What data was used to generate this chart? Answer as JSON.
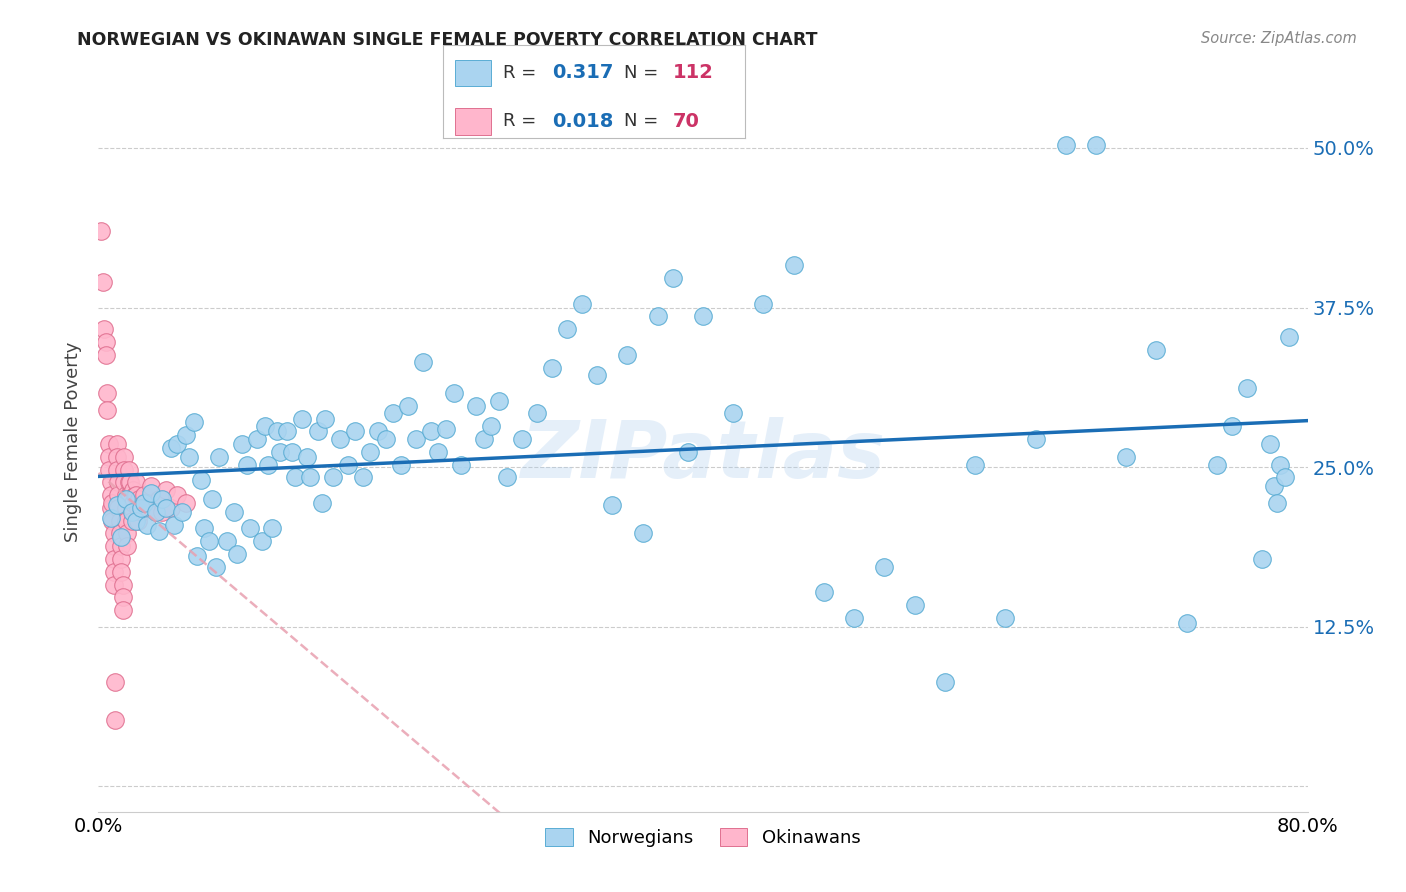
{
  "title": "NORWEGIAN VS OKINAWAN SINGLE FEMALE POVERTY CORRELATION CHART",
  "source": "Source: ZipAtlas.com",
  "ylabel": "Single Female Poverty",
  "xlim": [
    0.0,
    0.8
  ],
  "ylim": [
    -0.02,
    0.56
  ],
  "yticks": [
    0.0,
    0.125,
    0.25,
    0.375,
    0.5
  ],
  "ytick_labels": [
    "",
    "12.5%",
    "25.0%",
    "37.5%",
    "50.0%"
  ],
  "xticks": [
    0.0,
    0.16,
    0.32,
    0.48,
    0.64,
    0.8
  ],
  "xtick_labels": [
    "0.0%",
    "",
    "",
    "",
    "",
    "80.0%"
  ],
  "norwegian_R": 0.317,
  "norwegian_N": 112,
  "okinawan_R": 0.018,
  "okinawan_N": 70,
  "norwegian_color": "#aad4f0",
  "norwegian_edge_color": "#5aadd4",
  "norwegian_line_color": "#1a6db5",
  "okinawan_color": "#ffb6cc",
  "okinawan_edge_color": "#e07090",
  "okinawan_line_color": "#cc3366",
  "okinawan_dash_color": "#e8a0b0",
  "background_color": "#ffffff",
  "grid_color": "#cccccc",
  "title_color": "#222222",
  "source_color": "#888888",
  "watermark": "ZIPatlas",
  "legend_box_color": "#1a6db5",
  "legend_N_color": "#cc3366",
  "norwegian_x": [
    0.008,
    0.012,
    0.015,
    0.018,
    0.022,
    0.025,
    0.028,
    0.03,
    0.032,
    0.035,
    0.038,
    0.04,
    0.042,
    0.045,
    0.048,
    0.05,
    0.052,
    0.055,
    0.058,
    0.06,
    0.063,
    0.065,
    0.068,
    0.07,
    0.073,
    0.075,
    0.078,
    0.08,
    0.085,
    0.09,
    0.092,
    0.095,
    0.098,
    0.1,
    0.105,
    0.108,
    0.11,
    0.112,
    0.115,
    0.118,
    0.12,
    0.125,
    0.128,
    0.13,
    0.135,
    0.138,
    0.14,
    0.145,
    0.148,
    0.15,
    0.155,
    0.16,
    0.165,
    0.17,
    0.175,
    0.18,
    0.185,
    0.19,
    0.195,
    0.2,
    0.205,
    0.21,
    0.215,
    0.22,
    0.225,
    0.23,
    0.235,
    0.24,
    0.25,
    0.255,
    0.26,
    0.265,
    0.27,
    0.28,
    0.29,
    0.3,
    0.31,
    0.32,
    0.33,
    0.34,
    0.35,
    0.36,
    0.37,
    0.38,
    0.39,
    0.4,
    0.42,
    0.44,
    0.46,
    0.48,
    0.5,
    0.52,
    0.54,
    0.56,
    0.58,
    0.6,
    0.62,
    0.64,
    0.66,
    0.68,
    0.7,
    0.72,
    0.74,
    0.75,
    0.76,
    0.77,
    0.775,
    0.778,
    0.78,
    0.782,
    0.785,
    0.788
  ],
  "norwegian_y": [
    0.21,
    0.22,
    0.195,
    0.225,
    0.215,
    0.208,
    0.218,
    0.222,
    0.205,
    0.23,
    0.215,
    0.2,
    0.225,
    0.218,
    0.265,
    0.205,
    0.268,
    0.215,
    0.275,
    0.258,
    0.285,
    0.18,
    0.24,
    0.202,
    0.192,
    0.225,
    0.172,
    0.258,
    0.192,
    0.215,
    0.182,
    0.268,
    0.252,
    0.202,
    0.272,
    0.192,
    0.282,
    0.252,
    0.202,
    0.278,
    0.262,
    0.278,
    0.262,
    0.242,
    0.288,
    0.258,
    0.242,
    0.278,
    0.222,
    0.288,
    0.242,
    0.272,
    0.252,
    0.278,
    0.242,
    0.262,
    0.278,
    0.272,
    0.292,
    0.252,
    0.298,
    0.272,
    0.332,
    0.278,
    0.262,
    0.28,
    0.308,
    0.252,
    0.298,
    0.272,
    0.282,
    0.302,
    0.242,
    0.272,
    0.292,
    0.328,
    0.358,
    0.378,
    0.322,
    0.22,
    0.338,
    0.198,
    0.368,
    0.398,
    0.262,
    0.368,
    0.292,
    0.378,
    0.408,
    0.152,
    0.132,
    0.172,
    0.142,
    0.082,
    0.252,
    0.132,
    0.272,
    0.502,
    0.502,
    0.258,
    0.342,
    0.128,
    0.252,
    0.282,
    0.312,
    0.178,
    0.268,
    0.235,
    0.222,
    0.252,
    0.242,
    0.352
  ],
  "okinawan_x": [
    0.002,
    0.003,
    0.004,
    0.005,
    0.005,
    0.006,
    0.006,
    0.007,
    0.007,
    0.007,
    0.008,
    0.008,
    0.008,
    0.009,
    0.009,
    0.01,
    0.01,
    0.01,
    0.01,
    0.01,
    0.011,
    0.011,
    0.012,
    0.012,
    0.012,
    0.013,
    0.013,
    0.013,
    0.014,
    0.014,
    0.015,
    0.015,
    0.015,
    0.016,
    0.016,
    0.016,
    0.017,
    0.017,
    0.017,
    0.018,
    0.018,
    0.018,
    0.019,
    0.019,
    0.02,
    0.02,
    0.02,
    0.021,
    0.021,
    0.022,
    0.022,
    0.023,
    0.023,
    0.024,
    0.025,
    0.025,
    0.026,
    0.026,
    0.027,
    0.028,
    0.03,
    0.032,
    0.035,
    0.038,
    0.04,
    0.042,
    0.045,
    0.048,
    0.052,
    0.058
  ],
  "okinawan_y": [
    0.435,
    0.395,
    0.358,
    0.348,
    0.338,
    0.308,
    0.295,
    0.268,
    0.258,
    0.248,
    0.238,
    0.228,
    0.218,
    0.222,
    0.208,
    0.198,
    0.188,
    0.178,
    0.168,
    0.158,
    0.082,
    0.052,
    0.268,
    0.258,
    0.248,
    0.238,
    0.228,
    0.218,
    0.208,
    0.198,
    0.188,
    0.178,
    0.168,
    0.158,
    0.148,
    0.138,
    0.258,
    0.248,
    0.238,
    0.228,
    0.218,
    0.208,
    0.198,
    0.188,
    0.248,
    0.238,
    0.228,
    0.238,
    0.228,
    0.218,
    0.208,
    0.232,
    0.222,
    0.228,
    0.238,
    0.228,
    0.218,
    0.208,
    0.225,
    0.215,
    0.228,
    0.218,
    0.235,
    0.215,
    0.225,
    0.215,
    0.232,
    0.218,
    0.228,
    0.222
  ]
}
